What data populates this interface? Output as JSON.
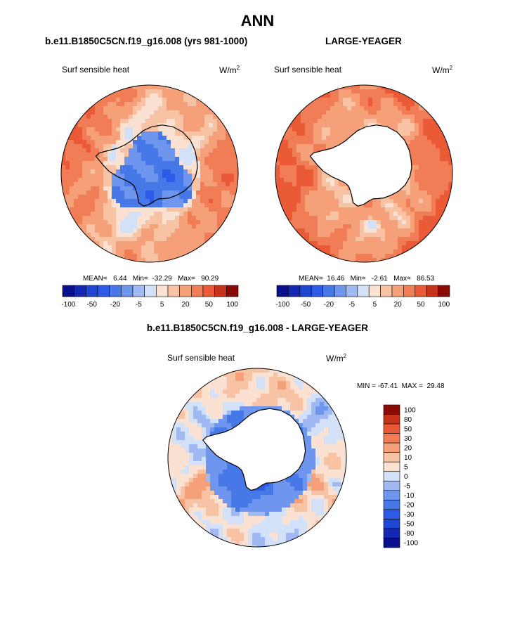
{
  "page": {
    "title": "ANN",
    "left_title": "b.e11.B1850C5CN.f19_g16.008 (yrs 981-1000)",
    "right_title": "LARGE-YEAGER",
    "diff_title": "b.e11.B1850C5CN.f19_g16.008 - LARGE-YEAGER"
  },
  "colors": {
    "land_fill": "#ffffff",
    "coast": "#000000",
    "outline": "#000000"
  },
  "chart_data": [
    {
      "type": "heatmap",
      "projection": "polar-stereographic-south",
      "variable_label": "Surf sensible heat",
      "units_base": "W/m",
      "units_sup": "2",
      "mean_text": "MEAN=   6.44   Min=  -32.29   Max=   90.29",
      "stats": {
        "mean": 6.44,
        "min": -32.29,
        "max": 90.29
      },
      "levels": [
        -100,
        -80,
        -50,
        -30,
        -20,
        -10,
        -5,
        0,
        5,
        10,
        20,
        30,
        50,
        80,
        100
      ],
      "tick_labels": [
        "-100",
        "-50",
        "-20",
        "-5",
        "5",
        "20",
        "50",
        "100"
      ],
      "colors": [
        "#0a0f8c",
        "#1428b4",
        "#1e46d2",
        "#2d5ae6",
        "#4678e8",
        "#6e96ee",
        "#a0b9f3",
        "#d2e1f8",
        "#fbe1d2",
        "#f8c3a5",
        "#f5a078",
        "#f07d55",
        "#eb5a37",
        "#c83219",
        "#8c0a05"
      ],
      "pattern": "antarctic-interior-negative"
    },
    {
      "type": "heatmap",
      "projection": "polar-stereographic-south",
      "variable_label": "Surf sensible heat",
      "units_base": "W/m",
      "units_sup": "2",
      "mean_text": "MEAN=  16.46   Min=   -2.61   Max=   86.53",
      "stats": {
        "mean": 16.46,
        "min": -2.61,
        "max": 86.53
      },
      "levels": [
        -100,
        -80,
        -50,
        -30,
        -20,
        -10,
        -5,
        0,
        5,
        10,
        20,
        30,
        50,
        80,
        100
      ],
      "tick_labels": [
        "-100",
        "-50",
        "-20",
        "-5",
        "5",
        "20",
        "50",
        "100"
      ],
      "colors": [
        "#0a0f8c",
        "#1428b4",
        "#1e46d2",
        "#2d5ae6",
        "#4678e8",
        "#6e96ee",
        "#a0b9f3",
        "#d2e1f8",
        "#fbe1d2",
        "#f8c3a5",
        "#f5a078",
        "#f07d55",
        "#eb5a37",
        "#c83219",
        "#8c0a05"
      ],
      "pattern": "ocean-positive"
    },
    {
      "type": "heatmap",
      "projection": "polar-stereographic-south",
      "variable_label": "Surf sensible heat",
      "units_base": "W/m",
      "units_sup": "2",
      "minmax_text": "MIN = -67.41  MAX =  29.48",
      "stats": {
        "min": -67.41,
        "max": 29.48
      },
      "levels": [
        -100,
        -80,
        -50,
        -30,
        -20,
        -10,
        -5,
        0,
        5,
        10,
        20,
        30,
        50,
        80,
        100
      ],
      "tick_labels": [
        "100",
        "80",
        "50",
        "30",
        "20",
        "10",
        "5",
        "0",
        "-5",
        "-10",
        "-20",
        "-30",
        "-50",
        "-80",
        "-100"
      ],
      "colors": [
        "#0a0f8c",
        "#1428b4",
        "#1e46d2",
        "#2d5ae6",
        "#4678e8",
        "#6e96ee",
        "#a0b9f3",
        "#d2e1f8",
        "#fbe1d2",
        "#f8c3a5",
        "#f5a078",
        "#f07d55",
        "#eb5a37",
        "#c83219",
        "#8c0a05"
      ],
      "pattern": "coastal-negative-difference"
    }
  ]
}
